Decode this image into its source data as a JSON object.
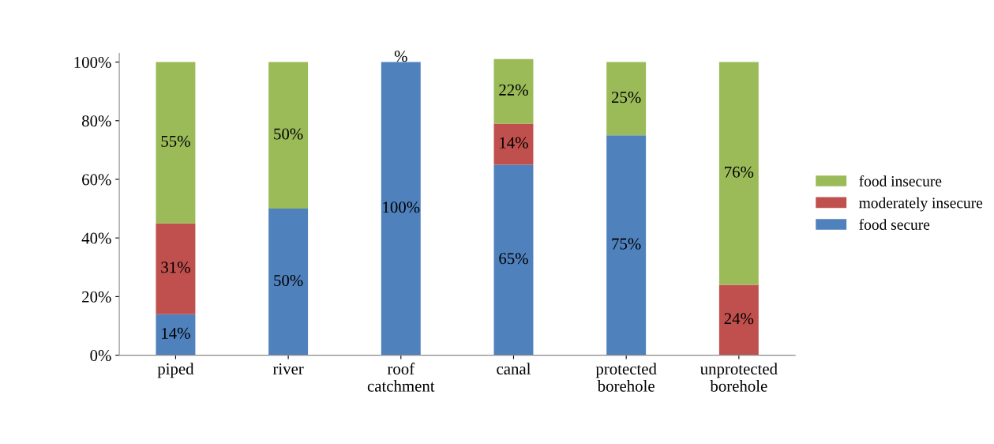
{
  "chart_data": {
    "type": "bar",
    "stacked": true,
    "categories": [
      "piped",
      "river",
      "roof\ncatchment",
      "canal",
      "protected\nborehole",
      "unprotected\nborehole"
    ],
    "series": [
      {
        "name": "food secure",
        "color": "#4f81bd",
        "values": [
          14,
          50,
          100,
          65,
          75,
          null
        ],
        "value_labels": [
          "14%",
          "50%",
          "100%",
          "65%",
          "75%",
          null
        ]
      },
      {
        "name": "moderately insecure",
        "color": "#c0504d",
        "values": [
          31,
          null,
          null,
          14,
          null,
          24
        ],
        "value_labels": [
          "31%",
          null,
          null,
          "14%",
          null,
          "24%"
        ]
      },
      {
        "name": "food insecure",
        "color": "#9bbb59",
        "values": [
          55,
          50,
          0,
          22,
          25,
          76
        ],
        "value_labels": [
          "55%",
          "50%",
          "%",
          "22%",
          "25%",
          "76%"
        ]
      }
    ],
    "ylim": [
      0,
      103
    ],
    "yticks": [
      {
        "value": 0,
        "label": "0%"
      },
      {
        "value": 20,
        "label": "20%"
      },
      {
        "value": 40,
        "label": "40%"
      },
      {
        "value": 60,
        "label": "60%"
      },
      {
        "value": 80,
        "label": "80%"
      },
      {
        "value": 100,
        "label": "100%"
      }
    ],
    "grid": false,
    "legend": "right"
  }
}
